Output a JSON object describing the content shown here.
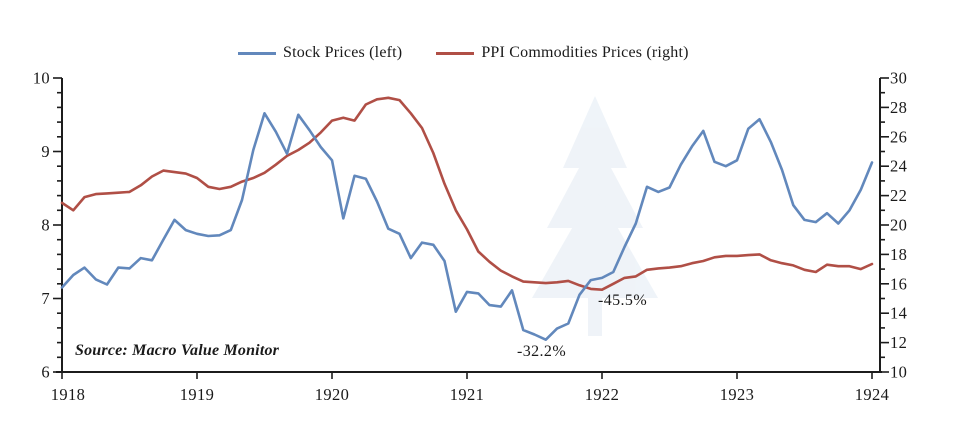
{
  "chart_data": {
    "type": "line",
    "title": "",
    "x_start": "1918-01",
    "x_end": "1924-01",
    "x_tick_labels": [
      "1918",
      "1919",
      "1920",
      "1921",
      "1922",
      "1923",
      "1924"
    ],
    "left_axis": {
      "min": 6,
      "max": 10,
      "major_step": 1,
      "minor_step": 0.2,
      "tick_labels": [
        "6",
        "7",
        "8",
        "9",
        "10"
      ]
    },
    "right_axis": {
      "min": 10,
      "max": 30,
      "major_step": 2,
      "minor_step": 1,
      "tick_labels": [
        "10",
        "12",
        "14",
        "16",
        "18",
        "20",
        "22",
        "24",
        "26",
        "28",
        "30"
      ]
    },
    "grid": "off",
    "legend_position": "top-center",
    "series": [
      {
        "name": "Stock Prices (left)",
        "axis": "left",
        "color": "#6288bc",
        "values": [
          7.15,
          7.32,
          7.42,
          7.26,
          7.19,
          7.42,
          7.41,
          7.55,
          7.52,
          7.8,
          8.07,
          7.93,
          7.88,
          7.85,
          7.86,
          7.93,
          8.34,
          9.02,
          9.52,
          9.27,
          8.97,
          9.5,
          9.29,
          9.06,
          8.88,
          8.09,
          8.67,
          8.63,
          8.32,
          7.95,
          7.88,
          7.55,
          7.76,
          7.73,
          7.51,
          6.82,
          7.09,
          7.07,
          6.91,
          6.89,
          7.11,
          6.57,
          6.51,
          6.44,
          6.59,
          6.66,
          7.05,
          7.25,
          7.28,
          7.36,
          7.7,
          8.02,
          8.52,
          8.45,
          8.51,
          8.82,
          9.07,
          9.28,
          8.86,
          8.8,
          8.88,
          9.31,
          9.44,
          9.13,
          8.75,
          8.27,
          8.07,
          8.04,
          8.16,
          8.02,
          8.2,
          8.48,
          8.85
        ]
      },
      {
        "name": "PPI Commodities Prices (right)",
        "axis": "right",
        "color": "#b04f46",
        "values": [
          21.5,
          21.0,
          21.9,
          22.1,
          22.15,
          22.2,
          22.25,
          22.7,
          23.3,
          23.7,
          23.6,
          23.5,
          23.2,
          22.6,
          22.45,
          22.6,
          22.95,
          23.2,
          23.55,
          24.1,
          24.7,
          25.1,
          25.6,
          26.3,
          27.1,
          27.3,
          27.1,
          28.2,
          28.55,
          28.65,
          28.5,
          27.6,
          26.6,
          24.9,
          22.8,
          21.0,
          19.7,
          18.2,
          17.5,
          16.9,
          16.5,
          16.15,
          16.1,
          16.05,
          16.1,
          16.2,
          15.9,
          15.65,
          15.6,
          16.0,
          16.4,
          16.5,
          16.95,
          17.05,
          17.1,
          17.2,
          17.4,
          17.55,
          17.8,
          17.9,
          17.9,
          17.95,
          18.0,
          17.6,
          17.4,
          17.25,
          16.95,
          16.8,
          17.3,
          17.2,
          17.2,
          17.0,
          17.35
        ]
      }
    ],
    "annotations": [
      {
        "text": "-32.2%",
        "near": "stock trough Aug 1921"
      },
      {
        "text": "-45.5%",
        "near": "ppi trough Jan 1922"
      }
    ],
    "source": "Source: Macro Value Monitor"
  },
  "legend": {
    "items": [
      {
        "label": "Stock Prices (left)",
        "color": "#6288bc"
      },
      {
        "label": "PPI Commodities Prices (right)",
        "color": "#b04f46"
      }
    ]
  },
  "colors": {
    "stock_line": "#6288bc",
    "ppi_line": "#b04f46",
    "axis": "#1c1c1c",
    "text": "#1a1a1a",
    "watermark": "#dce6f1"
  }
}
